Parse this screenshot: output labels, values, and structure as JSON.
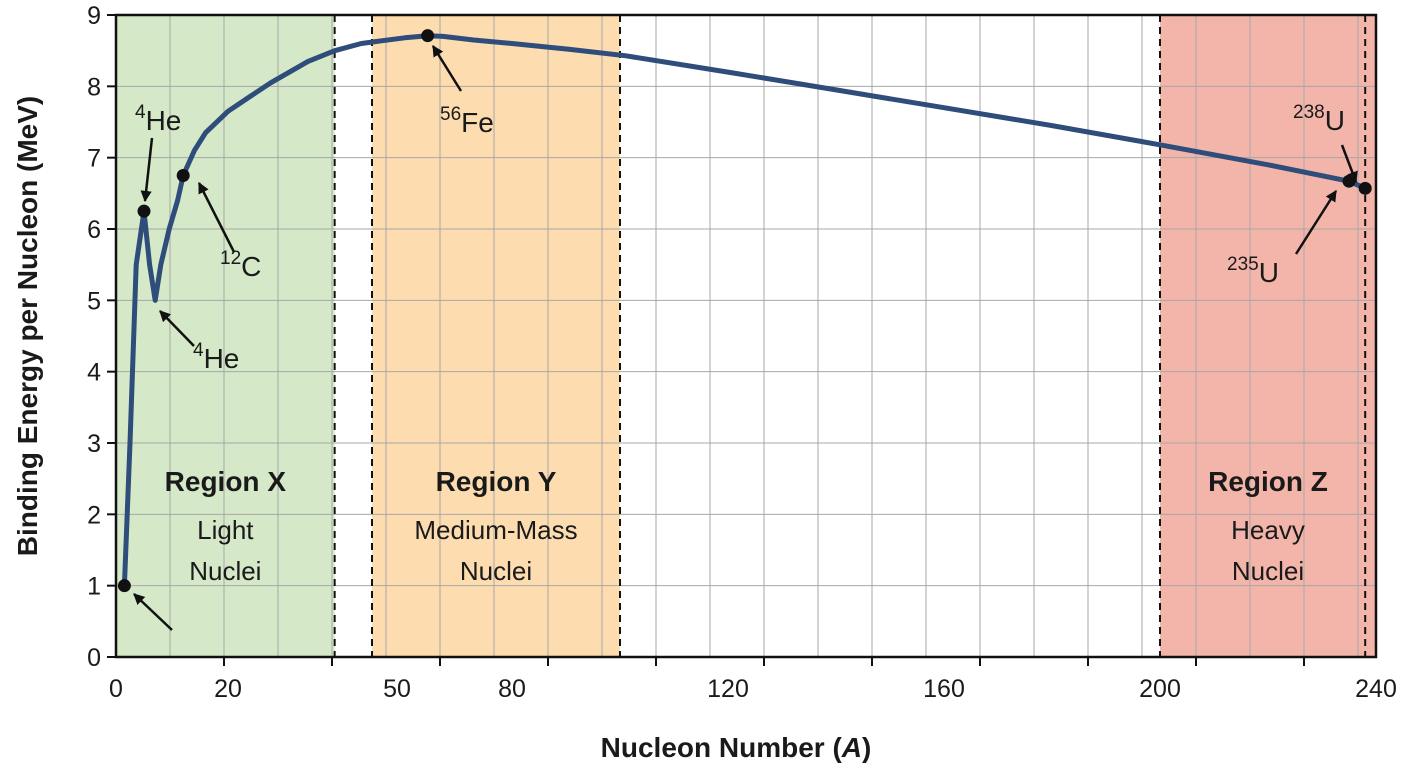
{
  "chart_data": {
    "type": "line",
    "xlabel_main": "Nucleon Number (",
    "xlabel_var": "A",
    "xlabel_end": ")",
    "ylabel": "Binding Energy per Nucleon (MeV)",
    "xlim": [
      0,
      240
    ],
    "ylim": [
      0,
      9
    ],
    "x_ticks": [
      0,
      20,
      50,
      80,
      120,
      160,
      200,
      240
    ],
    "y_ticks": [
      0,
      1,
      2,
      3,
      4,
      5,
      6,
      7,
      8,
      9
    ],
    "grid": true,
    "line_color": "#2e4d7a",
    "series": [
      {
        "x": [
          1.5,
          2.5,
          3.6,
          5,
          6,
          7,
          8,
          9.5,
          11,
          12,
          14,
          16,
          20,
          24,
          28,
          35,
          40,
          45,
          52,
          58,
          62,
          70,
          80,
          90,
          100,
          120,
          140,
          160,
          180,
          200,
          220,
          235,
          238
        ],
        "y": [
          1.0,
          3.0,
          5.5,
          6.25,
          5.5,
          5.0,
          5.5,
          6.0,
          6.4,
          6.75,
          7.1,
          7.35,
          7.65,
          7.85,
          8.05,
          8.35,
          8.5,
          8.6,
          8.68,
          8.71,
          8.7,
          8.65,
          8.6,
          8.52,
          8.43,
          8.2,
          7.95,
          7.7,
          7.45,
          7.18,
          6.9,
          6.67,
          6.57
        ]
      }
    ],
    "points": [
      {
        "x": 1.5,
        "y": 1.0
      },
      {
        "x": 5,
        "y": 6.25
      },
      {
        "x": 12,
        "y": 6.75
      },
      {
        "x": 58,
        "y": 8.71
      },
      {
        "x": 235,
        "y": 6.67
      },
      {
        "x": 238,
        "y": 6.57
      }
    ],
    "annotations": [
      {
        "sup": "4",
        "label": "He"
      },
      {
        "sup": "4",
        "label": "He"
      },
      {
        "sup": "12",
        "label": "C"
      },
      {
        "sup": "56",
        "label": "Fe"
      },
      {
        "sup": "238",
        "label": "U"
      },
      {
        "sup": "235",
        "label": "U"
      }
    ],
    "regions": [
      {
        "title": "Region X",
        "line1": "Light",
        "line2": "Nuclei",
        "x_range": [
          0,
          40
        ],
        "color": "#d5e8c8"
      },
      {
        "title": "Region Y",
        "line1": "Medium-Mass",
        "line2": "Nuclei",
        "x_range": [
          47,
          99
        ],
        "color": "#fddcb0"
      },
      {
        "title": "Region Z",
        "line1": "Heavy",
        "line2": "Nuclei",
        "x_range": [
          200,
          240
        ],
        "color": "#f3b5aa"
      }
    ]
  }
}
